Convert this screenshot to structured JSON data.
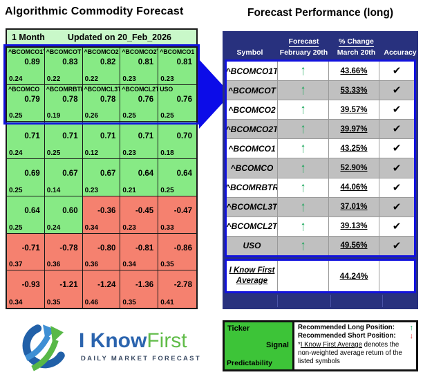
{
  "left_panel": {
    "title": "Algorithmic Commodity Forecast",
    "header": {
      "period": "1 Month",
      "updated": "Updated on 20_Feb_2026"
    },
    "grid": {
      "rows": [
        {
          "cells": [
            {
              "ticker": "^BCOMCO1T",
              "signal": "0.89",
              "predictability": "0.24",
              "color": "green"
            },
            {
              "ticker": "^BCOMCOT",
              "signal": "0.83",
              "predictability": "0.22",
              "color": "green"
            },
            {
              "ticker": "^BCOMCO2",
              "signal": "0.82",
              "predictability": "0.22",
              "color": "green"
            },
            {
              "ticker": "^BCOMCO2T",
              "signal": "0.81",
              "predictability": "0.23",
              "color": "green"
            },
            {
              "ticker": "^BCOMCO1",
              "signal": "0.81",
              "predictability": "0.23",
              "color": "green"
            }
          ]
        },
        {
          "cells": [
            {
              "ticker": "^BCOMCO",
              "signal": "0.79",
              "predictability": "0.25",
              "color": "green"
            },
            {
              "ticker": "^BCOMRBTR",
              "signal": "0.78",
              "predictability": "0.19",
              "color": "green"
            },
            {
              "ticker": "^BCOMCL3T",
              "signal": "0.78",
              "predictability": "0.26",
              "color": "green"
            },
            {
              "ticker": "^BCOMCL2T",
              "signal": "0.76",
              "predictability": "0.25",
              "color": "green"
            },
            {
              "ticker": "USO",
              "signal": "0.76",
              "predictability": "0.25",
              "color": "green"
            }
          ]
        },
        {
          "cells": [
            {
              "ticker": "",
              "signal": "0.71",
              "predictability": "0.24",
              "color": "green"
            },
            {
              "ticker": "",
              "signal": "0.71",
              "predictability": "0.25",
              "color": "green"
            },
            {
              "ticker": "",
              "signal": "0.71",
              "predictability": "0.12",
              "color": "green"
            },
            {
              "ticker": "",
              "signal": "0.71",
              "predictability": "0.23",
              "color": "green"
            },
            {
              "ticker": "",
              "signal": "0.70",
              "predictability": "0.18",
              "color": "green"
            }
          ]
        },
        {
          "cells": [
            {
              "ticker": "",
              "signal": "0.69",
              "predictability": "0.25",
              "color": "green"
            },
            {
              "ticker": "",
              "signal": "0.67",
              "predictability": "0.14",
              "color": "green"
            },
            {
              "ticker": "",
              "signal": "0.67",
              "predictability": "0.23",
              "color": "green"
            },
            {
              "ticker": "",
              "signal": "0.64",
              "predictability": "0.21",
              "color": "green"
            },
            {
              "ticker": "",
              "signal": "0.64",
              "predictability": "0.25",
              "color": "green"
            }
          ]
        },
        {
          "cells": [
            {
              "ticker": "",
              "signal": "0.64",
              "predictability": "0.25",
              "color": "green"
            },
            {
              "ticker": "",
              "signal": "0.60",
              "predictability": "0.24",
              "color": "green"
            },
            {
              "ticker": "",
              "signal": "-0.36",
              "predictability": "0.34",
              "color": "red"
            },
            {
              "ticker": "",
              "signal": "-0.45",
              "predictability": "0.23",
              "color": "red"
            },
            {
              "ticker": "",
              "signal": "-0.47",
              "predictability": "0.33",
              "color": "red"
            }
          ]
        },
        {
          "cells": [
            {
              "ticker": "",
              "signal": "-0.71",
              "predictability": "0.37",
              "color": "red"
            },
            {
              "ticker": "",
              "signal": "-0.78",
              "predictability": "0.36",
              "color": "red"
            },
            {
              "ticker": "",
              "signal": "-0.80",
              "predictability": "0.36",
              "color": "red"
            },
            {
              "ticker": "",
              "signal": "-0.81",
              "predictability": "0.34",
              "color": "red"
            },
            {
              "ticker": "",
              "signal": "-0.86",
              "predictability": "0.35",
              "color": "red"
            }
          ]
        },
        {
          "cells": [
            {
              "ticker": "",
              "signal": "-0.93",
              "predictability": "0.34",
              "color": "red"
            },
            {
              "ticker": "",
              "signal": "-1.21",
              "predictability": "0.35",
              "color": "red"
            },
            {
              "ticker": "",
              "signal": "-1.24",
              "predictability": "0.46",
              "color": "red"
            },
            {
              "ticker": "",
              "signal": "-1.36",
              "predictability": "0.35",
              "color": "red"
            },
            {
              "ticker": "",
              "signal": "-2.78",
              "predictability": "0.41",
              "color": "red"
            }
          ]
        }
      ]
    }
  },
  "right_panel": {
    "title": "Forecast Performance (long)",
    "table": {
      "headers": {
        "symbol": "Symbol",
        "forecast_top": "Forecast",
        "forecast_sub": "February 20th",
        "change_top": "% Change",
        "change_sub": "March 20th",
        "accuracy": "Accuracy"
      },
      "rows": [
        {
          "symbol": "^BCOMCO1T",
          "forecast": "up",
          "change": "43.66%",
          "accuracy": "check"
        },
        {
          "symbol": "^BCOMCOT",
          "forecast": "up",
          "change": "53.33%",
          "accuracy": "check"
        },
        {
          "symbol": "^BCOMCO2",
          "forecast": "up",
          "change": "39.57%",
          "accuracy": "check"
        },
        {
          "symbol": "^BCOMCO2T",
          "forecast": "up",
          "change": "39.97%",
          "accuracy": "check"
        },
        {
          "symbol": "^BCOMCO1",
          "forecast": "up",
          "change": "43.25%",
          "accuracy": "check"
        },
        {
          "symbol": "^BCOMCO",
          "forecast": "up",
          "change": "52.90%",
          "accuracy": "check"
        },
        {
          "symbol": "^BCOMRBTR",
          "forecast": "up",
          "change": "44.06%",
          "accuracy": "check"
        },
        {
          "symbol": "^BCOMCL3T",
          "forecast": "up",
          "change": "37.01%",
          "accuracy": "check"
        },
        {
          "symbol": "^BCOMCL2T",
          "forecast": "up",
          "change": "39.13%",
          "accuracy": "check"
        },
        {
          "symbol": "USO",
          "forecast": "up",
          "change": "49.56%",
          "accuracy": "check"
        }
      ],
      "average": {
        "label_line1": "I Know First",
        "label_line2": "Average",
        "value": "44.24%"
      }
    }
  },
  "logo": {
    "part1": "I Know",
    "part2": "First",
    "tagline": "DAILY MARKET FORECAST"
  },
  "legend": {
    "ticker": "Ticker",
    "signal": "Signal",
    "predictability": "Predictability",
    "long_label": "Recommended Long Position:",
    "short_label": "Recommended Short Position:",
    "note_prefix": "*",
    "note_underline": "I Know First Average",
    "note_rest": " denotes the non-weighted average return of the listed symbols"
  },
  "icons": {
    "up_arrow": "↑",
    "down_arrow": "↓",
    "check": "✔"
  },
  "colors": {
    "grid_green": "#87ea85",
    "grid_red": "#f5816f",
    "header_pale_green": "#c9f8c9",
    "navy": "#28317e",
    "highlight_blue": "#1212de",
    "alt_row_gray": "#c0c0c0",
    "arrow_green": "#12a455",
    "legend_green": "#3dc438",
    "logo_blue": "#2b64ae",
    "logo_green": "#61bc49"
  },
  "chart_data": [
    {
      "type": "heatmap",
      "title": "Algorithmic Commodity Forecast - 1 Month - Updated on 20_Feb_2026",
      "description": "5x7 grid; each cell = [signal, predictability]; green positive, red negative",
      "tickers_top10": [
        "^BCOMCO1T",
        "^BCOMCOT",
        "^BCOMCO2",
        "^BCOMCO2T",
        "^BCOMCO1",
        "^BCOMCO",
        "^BCOMRBTR",
        "^BCOMCL3T",
        "^BCOMCL2T",
        "USO"
      ],
      "signals": [
        [
          0.89,
          0.83,
          0.82,
          0.81,
          0.81
        ],
        [
          0.79,
          0.78,
          0.78,
          0.76,
          0.76
        ],
        [
          0.71,
          0.71,
          0.71,
          0.71,
          0.7
        ],
        [
          0.69,
          0.67,
          0.67,
          0.64,
          0.64
        ],
        [
          0.64,
          0.6,
          -0.36,
          -0.45,
          -0.47
        ],
        [
          -0.71,
          -0.78,
          -0.8,
          -0.81,
          -0.86
        ],
        [
          -0.93,
          -1.21,
          -1.24,
          -1.36,
          -2.78
        ]
      ],
      "predictabilities": [
        [
          0.24,
          0.22,
          0.22,
          0.23,
          0.23
        ],
        [
          0.25,
          0.19,
          0.26,
          0.25,
          0.25
        ],
        [
          0.24,
          0.25,
          0.12,
          0.23,
          0.18
        ],
        [
          0.25,
          0.14,
          0.23,
          0.21,
          0.25
        ],
        [
          0.25,
          0.24,
          0.34,
          0.23,
          0.33
        ],
        [
          0.37,
          0.36,
          0.36,
          0.34,
          0.35
        ],
        [
          0.34,
          0.35,
          0.46,
          0.35,
          0.41
        ]
      ]
    },
    {
      "type": "table",
      "title": "Forecast Performance (long)",
      "columns": [
        "Symbol",
        "Forecast February 20th",
        "% Change March 20th",
        "Accuracy"
      ],
      "rows": [
        [
          "^BCOMCO1T",
          "up",
          "43.66%",
          "correct"
        ],
        [
          "^BCOMCOT",
          "up",
          "53.33%",
          "correct"
        ],
        [
          "^BCOMCO2",
          "up",
          "39.57%",
          "correct"
        ],
        [
          "^BCOMCO2T",
          "up",
          "39.97%",
          "correct"
        ],
        [
          "^BCOMCO1",
          "up",
          "43.25%",
          "correct"
        ],
        [
          "^BCOMCO",
          "up",
          "52.90%",
          "correct"
        ],
        [
          "^BCOMRBTR",
          "up",
          "44.06%",
          "correct"
        ],
        [
          "^BCOMCL3T",
          "up",
          "37.01%",
          "correct"
        ],
        [
          "^BCOMCL2T",
          "up",
          "39.13%",
          "correct"
        ],
        [
          "USO",
          "up",
          "49.56%",
          "correct"
        ]
      ],
      "average": [
        "I Know First Average",
        "",
        "44.24%",
        ""
      ]
    }
  ]
}
